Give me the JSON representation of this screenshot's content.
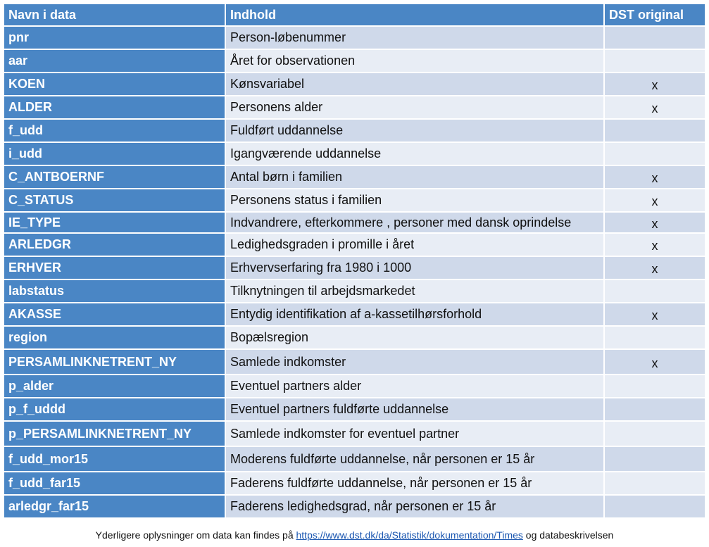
{
  "table": {
    "headers": [
      "Navn i data",
      "Indhold",
      "DST original"
    ],
    "rows": [
      {
        "name": "pnr",
        "content": "Person-løbenummer",
        "dst": ""
      },
      {
        "name": "aar",
        "content": "Året for observationen",
        "dst": ""
      },
      {
        "name": "KOEN",
        "content": "Kønsvariabel",
        "dst": "x"
      },
      {
        "name": "ALDER",
        "content": "Personens alder",
        "dst": "x"
      },
      {
        "name": "f_udd",
        "content": "Fuldført uddannelse",
        "dst": ""
      },
      {
        "name": "i_udd",
        "content": "Igangværende uddannelse",
        "dst": ""
      },
      {
        "name": "C_ANTBOERNF",
        "content": "Antal børn i familien",
        "dst": "x"
      },
      {
        "name": "C_STATUS",
        "content": "Personens status i familien",
        "dst": "x"
      },
      {
        "name": "IE_TYPE",
        "content": "Indvandrere, efterkommere , personer med dansk oprindelse",
        "dst": "x"
      },
      {
        "name": "ARLEDGR",
        "content": "Ledighedsgraden i promille i året",
        "dst": "x"
      },
      {
        "name": "ERHVER",
        "content": "Erhvervserfaring fra 1980 i 1000",
        "dst": "x"
      },
      {
        "name": "labstatus",
        "content": "Tilknytningen til arbejdsmarkedet",
        "dst": ""
      },
      {
        "name": "AKASSE",
        "content": "Entydig identifikation af a-kassetilhørsforhold",
        "dst": "x"
      },
      {
        "name": "region",
        "content": "Bopælsregion",
        "dst": ""
      },
      {
        "name": "PERSAMLINKNETRENT_NY",
        "content": "Samlede indkomster",
        "dst": "x"
      },
      {
        "name": "p_alder",
        "content": "Eventuel partners alder",
        "dst": ""
      },
      {
        "name": "p_f_uddd",
        "content": "Eventuel partners fuldførte uddannelse",
        "dst": ""
      },
      {
        "name": "p_PERSAMLINKNETRENT_NY",
        "content": "Samlede indkomster for eventuel partner",
        "dst": ""
      },
      {
        "name": "f_udd_mor15",
        "content": "Moderens fuldførte uddannelse, når personen er 15 år",
        "dst": ""
      },
      {
        "name": "f_udd_far15",
        "content": "Faderens fuldførte uddannelse, når personen er 15 år",
        "dst": ""
      },
      {
        "name": "arledgr_far15",
        "content": "Faderens ledighedsgrad, når personen er 15 år",
        "dst": ""
      }
    ]
  },
  "footer": {
    "text_before": "Yderligere oplysninger om data kan findes på ",
    "link_text": "https://www.dst.dk/da/Statistik/dokumentation/Times",
    "text_after": " og databeskrivelsen"
  },
  "colors": {
    "header_blue": "#4a86c5",
    "row_band_dark": "#cfd9ea",
    "row_band_light": "#e8edf5",
    "link": "#1a56b0"
  }
}
